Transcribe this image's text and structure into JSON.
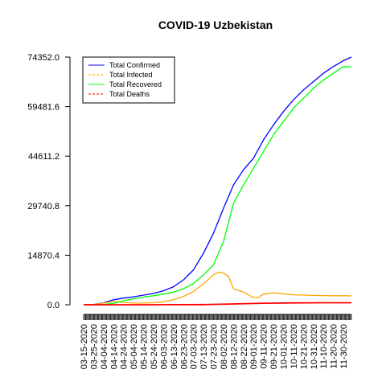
{
  "chart_data": {
    "type": "line",
    "title": "COVID-19 Uzbekistan",
    "xlabel": "",
    "ylabel": "",
    "ylim": [
      0,
      74352
    ],
    "yticks": [
      "0.0",
      "14870.4",
      "29740.8",
      "44611.2",
      "59481.6",
      "74352.0"
    ],
    "ytick_values": [
      0,
      14870.4,
      29740.8,
      44611.2,
      59481.6,
      74352.0
    ],
    "x_start": "03-15-2020",
    "x_end": "12-08-2020",
    "xtick_labels": [
      "03-15-2020",
      "03-25-2020",
      "04-04-2020",
      "04-14-2020",
      "04-24-2020",
      "05-04-2020",
      "05-14-2020",
      "05-24-2020",
      "06-03-2020",
      "06-13-2020",
      "06-23-2020",
      "07-03-2020",
      "07-13-2020",
      "07-23-2020",
      "08-02-2020",
      "08-12-2020",
      "08-22-2020",
      "09-01-2020",
      "09-11-2020",
      "09-21-2020",
      "10-01-2020",
      "10-11-2020",
      "10-21-2020",
      "10-31-2020",
      "11-10-2020",
      "11-20-2020",
      "11-30-2020"
    ],
    "legend_position": "top-left",
    "grid": false,
    "series": [
      {
        "name": "Total Confirmed",
        "color": "#0000ff",
        "dash": "solid",
        "x": [
          "03-15-2020",
          "03-25-2020",
          "04-04-2020",
          "04-14-2020",
          "04-24-2020",
          "05-04-2020",
          "05-14-2020",
          "05-24-2020",
          "06-03-2020",
          "06-13-2020",
          "06-23-2020",
          "07-03-2020",
          "07-13-2020",
          "07-23-2020",
          "08-02-2020",
          "08-12-2020",
          "08-22-2020",
          "09-01-2020",
          "09-11-2020",
          "09-21-2020",
          "10-01-2020",
          "10-11-2020",
          "10-21-2020",
          "10-31-2020",
          "11-10-2020",
          "11-20-2020",
          "11-30-2020",
          "12-08-2020"
        ],
        "y": [
          0,
          100,
          600,
          1500,
          2000,
          2400,
          2900,
          3400,
          4200,
          5400,
          7500,
          10500,
          15500,
          21500,
          29000,
          36000,
          40500,
          44000,
          49500,
          54000,
          58000,
          61500,
          64500,
          67000,
          69500,
          71500,
          73300,
          74352
        ]
      },
      {
        "name": "Total Infected",
        "color": "#ffa500",
        "dash": "dashed",
        "x": [
          "03-15-2020",
          "03-25-2020",
          "04-04-2020",
          "04-14-2020",
          "04-24-2020",
          "05-04-2020",
          "05-14-2020",
          "05-24-2020",
          "06-03-2020",
          "06-13-2020",
          "06-23-2020",
          "07-03-2020",
          "07-13-2020",
          "07-23-2020",
          "07-28-2020",
          "08-02-2020",
          "08-07-2020",
          "08-12-2020",
          "08-22-2020",
          "09-01-2020",
          "09-06-2020",
          "09-11-2020",
          "09-21-2020",
          "10-01-2020",
          "10-11-2020",
          "10-21-2020",
          "10-31-2020",
          "11-10-2020",
          "11-20-2020",
          "11-30-2020",
          "12-08-2020"
        ],
        "y": [
          0,
          100,
          500,
          1000,
          700,
          500,
          500,
          600,
          900,
          1500,
          2500,
          4000,
          6300,
          9000,
          9800,
          9500,
          8500,
          4800,
          3800,
          2200,
          2200,
          3200,
          3600,
          3300,
          3000,
          2900,
          2800,
          2750,
          2700,
          2700,
          2650
        ]
      },
      {
        "name": "Total Recovered",
        "color": "#00ff00",
        "dash": "solid",
        "x": [
          "03-15-2020",
          "03-25-2020",
          "04-04-2020",
          "04-14-2020",
          "04-24-2020",
          "05-04-2020",
          "05-14-2020",
          "05-24-2020",
          "06-03-2020",
          "06-13-2020",
          "06-23-2020",
          "07-03-2020",
          "07-13-2020",
          "07-23-2020",
          "08-02-2020",
          "08-12-2020",
          "08-22-2020",
          "09-01-2020",
          "09-11-2020",
          "09-21-2020",
          "10-01-2020",
          "10-11-2020",
          "10-21-2020",
          "10-31-2020",
          "11-10-2020",
          "11-20-2020",
          "11-30-2020",
          "12-08-2020"
        ],
        "y": [
          0,
          0,
          50,
          450,
          1200,
          1800,
          2300,
          2700,
          3200,
          3800,
          4800,
          6400,
          9000,
          12000,
          19000,
          30500,
          36000,
          41000,
          46000,
          51000,
          55000,
          59000,
          62000,
          65000,
          67500,
          69500,
          71500,
          71400
        ]
      },
      {
        "name": "Total Deaths",
        "color": "#ff0000",
        "dash": "dashed",
        "x": [
          "03-15-2020",
          "04-14-2020",
          "05-14-2020",
          "06-13-2020",
          "07-13-2020",
          "08-12-2020",
          "09-11-2020",
          "10-11-2020",
          "11-10-2020",
          "12-08-2020"
        ],
        "y": [
          0,
          5,
          10,
          20,
          60,
          250,
          450,
          550,
          600,
          614
        ]
      }
    ]
  }
}
